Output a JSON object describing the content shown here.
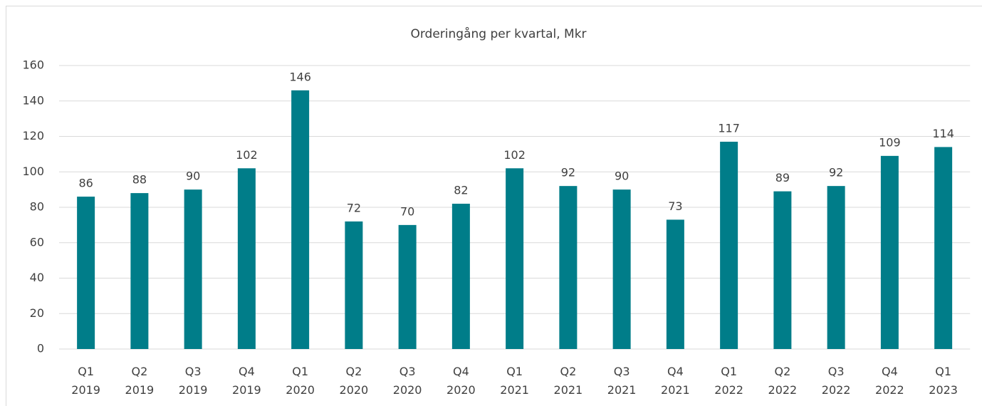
{
  "chart_data": {
    "type": "bar",
    "title": "Orderingång per kvartal, Mkr",
    "categories": [
      [
        "Q1",
        "2019"
      ],
      [
        "Q2",
        "2019"
      ],
      [
        "Q3",
        "2019"
      ],
      [
        "Q4",
        "2019"
      ],
      [
        "Q1",
        "2020"
      ],
      [
        "Q2",
        "2020"
      ],
      [
        "Q3",
        "2020"
      ],
      [
        "Q4",
        "2020"
      ],
      [
        "Q1",
        "2021"
      ],
      [
        "Q2",
        "2021"
      ],
      [
        "Q3",
        "2021"
      ],
      [
        "Q4",
        "2021"
      ],
      [
        "Q1",
        "2022"
      ],
      [
        "Q2",
        "2022"
      ],
      [
        "Q3",
        "2022"
      ],
      [
        "Q4",
        "2022"
      ],
      [
        "Q1",
        "2023"
      ]
    ],
    "values": [
      86,
      88,
      90,
      102,
      146,
      72,
      70,
      82,
      102,
      92,
      90,
      73,
      117,
      89,
      92,
      109,
      114
    ],
    "color": "#007d89",
    "ylim": [
      0,
      160
    ],
    "yticks": [
      0,
      20,
      40,
      60,
      80,
      100,
      120,
      140,
      160
    ],
    "grid": true
  }
}
